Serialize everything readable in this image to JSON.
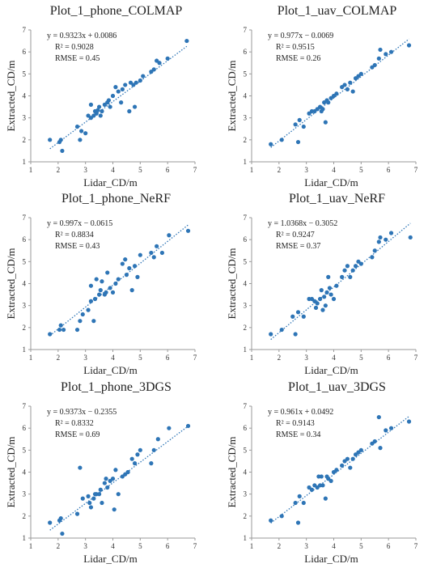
{
  "chart_data": [
    {
      "type": "scatter",
      "title": "Plot_1_phone_COLMAP",
      "xlabel": "Lidar_CD/m",
      "ylabel": "Extracted_CD/m",
      "xlim": [
        1,
        7
      ],
      "ylim": [
        1,
        7
      ],
      "xticks": [
        "1",
        "2",
        "3",
        "4",
        "5",
        "6",
        "7"
      ],
      "yticks": [
        "1",
        "2",
        "3",
        "4",
        "5",
        "6",
        "7"
      ],
      "grid": false,
      "trendline": {
        "slope": 0.9323,
        "intercept": 0.0086,
        "style": "dotted"
      },
      "annotations": [
        "y = 0.9323x + 0.0086",
        "R² = 0.9028",
        "RMSE = 0.45"
      ],
      "color": "#2e75b6",
      "points": [
        [
          1.7,
          2.0
        ],
        [
          2.05,
          1.9
        ],
        [
          2.1,
          2.0
        ],
        [
          2.15,
          1.5
        ],
        [
          2.7,
          2.6
        ],
        [
          2.8,
          2.0
        ],
        [
          2.85,
          2.4
        ],
        [
          3.0,
          2.3
        ],
        [
          3.1,
          3.1
        ],
        [
          3.2,
          3.0
        ],
        [
          3.2,
          3.6
        ],
        [
          3.3,
          3.1
        ],
        [
          3.35,
          3.3
        ],
        [
          3.4,
          3.2
        ],
        [
          3.45,
          3.35
        ],
        [
          3.5,
          3.5
        ],
        [
          3.55,
          3.1
        ],
        [
          3.6,
          3.3
        ],
        [
          3.7,
          3.6
        ],
        [
          3.8,
          3.7
        ],
        [
          3.85,
          3.8
        ],
        [
          3.9,
          3.5
        ],
        [
          4.0,
          4.0
        ],
        [
          4.1,
          4.4
        ],
        [
          4.2,
          4.2
        ],
        [
          4.3,
          3.7
        ],
        [
          4.35,
          4.3
        ],
        [
          4.45,
          4.5
        ],
        [
          4.6,
          3.3
        ],
        [
          4.65,
          4.6
        ],
        [
          4.75,
          4.5
        ],
        [
          4.8,
          3.5
        ],
        [
          4.85,
          4.6
        ],
        [
          5.0,
          4.7
        ],
        [
          5.1,
          4.9
        ],
        [
          5.4,
          5.1
        ],
        [
          5.5,
          5.2
        ],
        [
          5.6,
          5.6
        ],
        [
          5.7,
          5.5
        ],
        [
          6.0,
          5.7
        ],
        [
          6.7,
          6.5
        ]
      ]
    },
    {
      "type": "scatter",
      "title": "Plot_1_uav_COLMAP",
      "xlabel": "Lidar_CD/m",
      "ylabel": "Extracted_CD/m",
      "xlim": [
        1,
        7
      ],
      "ylim": [
        1,
        7
      ],
      "xticks": [
        "1",
        "2",
        "3",
        "4",
        "5",
        "6",
        "7"
      ],
      "yticks": [
        "1",
        "2",
        "3",
        "4",
        "5",
        "6",
        "7"
      ],
      "grid": false,
      "trendline": {
        "slope": 0.977,
        "intercept": -0.0069,
        "style": "dotted"
      },
      "annotations": [
        "y = 0.977x − 0.0069",
        "R² = 0.9515",
        "RMSE = 0.26"
      ],
      "color": "#2e75b6",
      "points": [
        [
          1.7,
          1.8
        ],
        [
          2.1,
          2.0
        ],
        [
          2.6,
          2.7
        ],
        [
          2.7,
          1.9
        ],
        [
          2.75,
          2.9
        ],
        [
          2.9,
          2.6
        ],
        [
          3.1,
          3.2
        ],
        [
          3.2,
          3.3
        ],
        [
          3.3,
          3.3
        ],
        [
          3.4,
          3.4
        ],
        [
          3.5,
          3.5
        ],
        [
          3.55,
          3.3
        ],
        [
          3.6,
          3.4
        ],
        [
          3.65,
          3.7
        ],
        [
          3.7,
          2.8
        ],
        [
          3.75,
          3.8
        ],
        [
          3.8,
          3.7
        ],
        [
          3.9,
          3.9
        ],
        [
          4.0,
          4.0
        ],
        [
          4.1,
          4.1
        ],
        [
          4.3,
          4.4
        ],
        [
          4.4,
          4.5
        ],
        [
          4.5,
          4.3
        ],
        [
          4.6,
          4.6
        ],
        [
          4.7,
          4.2
        ],
        [
          4.8,
          4.8
        ],
        [
          4.9,
          4.9
        ],
        [
          5.0,
          5.0
        ],
        [
          5.4,
          5.3
        ],
        [
          5.5,
          5.4
        ],
        [
          5.65,
          5.7
        ],
        [
          5.7,
          6.1
        ],
        [
          5.9,
          5.9
        ],
        [
          6.1,
          6.0
        ],
        [
          6.75,
          6.3
        ]
      ]
    },
    {
      "type": "scatter",
      "title": "Plot_1_phone_NeRF",
      "xlabel": "Lidar_CD/m",
      "ylabel": "Extracted_CD/m",
      "xlim": [
        1,
        7
      ],
      "ylim": [
        1,
        7
      ],
      "xticks": [
        "1",
        "2",
        "3",
        "4",
        "5",
        "6",
        "7"
      ],
      "yticks": [
        "1",
        "2",
        "3",
        "4",
        "5",
        "6",
        "7"
      ],
      "grid": false,
      "trendline": {
        "slope": 0.997,
        "intercept": -0.0615,
        "style": "dotted"
      },
      "annotations": [
        "y = 0.997x − 0.0615",
        "R² = 0.8834",
        "RMSE = 0.43"
      ],
      "color": "#2e75b6",
      "points": [
        [
          1.7,
          1.7
        ],
        [
          2.05,
          1.9
        ],
        [
          2.1,
          2.1
        ],
        [
          2.2,
          1.9
        ],
        [
          2.7,
          1.9
        ],
        [
          2.8,
          2.3
        ],
        [
          2.9,
          2.6
        ],
        [
          3.1,
          2.8
        ],
        [
          3.2,
          3.2
        ],
        [
          3.2,
          3.9
        ],
        [
          3.3,
          2.3
        ],
        [
          3.35,
          3.3
        ],
        [
          3.4,
          4.2
        ],
        [
          3.5,
          3.5
        ],
        [
          3.55,
          3.7
        ],
        [
          3.6,
          4.1
        ],
        [
          3.7,
          3.5
        ],
        [
          3.75,
          3.6
        ],
        [
          3.8,
          4.5
        ],
        [
          3.9,
          3.8
        ],
        [
          4.0,
          3.6
        ],
        [
          4.1,
          4.0
        ],
        [
          4.2,
          4.2
        ],
        [
          4.35,
          4.9
        ],
        [
          4.45,
          5.1
        ],
        [
          4.5,
          4.4
        ],
        [
          4.6,
          4.7
        ],
        [
          4.7,
          3.7
        ],
        [
          4.8,
          4.8
        ],
        [
          4.9,
          4.3
        ],
        [
          5.0,
          5.3
        ],
        [
          5.4,
          5.4
        ],
        [
          5.5,
          5.2
        ],
        [
          5.6,
          5.7
        ],
        [
          5.8,
          5.4
        ],
        [
          6.05,
          6.2
        ],
        [
          6.75,
          6.4
        ]
      ]
    },
    {
      "type": "scatter",
      "title": "Plot_1_uav_NeRF",
      "xlabel": "Lidar_CD/m",
      "ylabel": "Extracted_CD/m",
      "xlim": [
        1,
        7
      ],
      "ylim": [
        1,
        7
      ],
      "xticks": [
        "1",
        "2",
        "3",
        "4",
        "5",
        "6",
        "7"
      ],
      "yticks": [
        "1",
        "2",
        "3",
        "4",
        "5",
        "6",
        "7"
      ],
      "grid": false,
      "trendline": {
        "slope": 1.0368,
        "intercept": -0.3052,
        "style": "dotted"
      },
      "annotations": [
        "y = 1.0368x − 0.3052",
        "R² = 0.9247",
        "RMSE = 0.37"
      ],
      "color": "#2e75b6",
      "points": [
        [
          1.7,
          1.7
        ],
        [
          2.1,
          1.9
        ],
        [
          2.5,
          2.5
        ],
        [
          2.6,
          1.7
        ],
        [
          2.7,
          2.7
        ],
        [
          2.9,
          2.5
        ],
        [
          3.1,
          3.3
        ],
        [
          3.2,
          3.3
        ],
        [
          3.3,
          3.2
        ],
        [
          3.35,
          2.9
        ],
        [
          3.4,
          3.1
        ],
        [
          3.5,
          3.3
        ],
        [
          3.55,
          3.7
        ],
        [
          3.6,
          2.8
        ],
        [
          3.65,
          3.4
        ],
        [
          3.7,
          3.0
        ],
        [
          3.75,
          3.6
        ],
        [
          3.8,
          4.3
        ],
        [
          3.85,
          3.8
        ],
        [
          3.9,
          3.5
        ],
        [
          4.0,
          3.3
        ],
        [
          4.1,
          3.9
        ],
        [
          4.3,
          4.3
        ],
        [
          4.4,
          4.6
        ],
        [
          4.5,
          4.8
        ],
        [
          4.6,
          4.3
        ],
        [
          4.7,
          4.6
        ],
        [
          4.8,
          4.8
        ],
        [
          4.9,
          5.0
        ],
        [
          5.0,
          4.9
        ],
        [
          5.4,
          5.2
        ],
        [
          5.5,
          5.5
        ],
        [
          5.65,
          5.9
        ],
        [
          5.7,
          6.1
        ],
        [
          5.9,
          6.0
        ],
        [
          6.1,
          6.3
        ],
        [
          6.8,
          6.1
        ]
      ]
    },
    {
      "type": "scatter",
      "title": "Plot_1_phone_3DGS",
      "xlabel": "Lidar_CD/m",
      "ylabel": "Extracted_CD/m",
      "xlim": [
        1,
        7
      ],
      "ylim": [
        1,
        7
      ],
      "xticks": [
        "1",
        "2",
        "3",
        "4",
        "5",
        "6",
        "7"
      ],
      "yticks": [
        "1",
        "2",
        "3",
        "4",
        "5",
        "6",
        "7"
      ],
      "grid": false,
      "trendline": {
        "slope": 0.9373,
        "intercept": -0.2355,
        "style": "dotted"
      },
      "annotations": [
        "y = 0.9373x − 0.2355",
        "R² = 0.8332",
        "RMSE = 0.69"
      ],
      "color": "#2e75b6",
      "points": [
        [
          1.7,
          1.7
        ],
        [
          2.05,
          1.8
        ],
        [
          2.1,
          1.9
        ],
        [
          2.15,
          1.2
        ],
        [
          2.7,
          2.1
        ],
        [
          2.8,
          4.2
        ],
        [
          2.9,
          2.8
        ],
        [
          3.1,
          2.9
        ],
        [
          3.15,
          2.6
        ],
        [
          3.2,
          2.4
        ],
        [
          3.3,
          2.8
        ],
        [
          3.35,
          3.0
        ],
        [
          3.4,
          3.0
        ],
        [
          3.5,
          3.0
        ],
        [
          3.55,
          3.2
        ],
        [
          3.6,
          2.6
        ],
        [
          3.7,
          3.5
        ],
        [
          3.75,
          3.7
        ],
        [
          3.8,
          3.3
        ],
        [
          3.9,
          3.6
        ],
        [
          4.0,
          3.7
        ],
        [
          4.05,
          2.3
        ],
        [
          4.1,
          4.1
        ],
        [
          4.2,
          3.0
        ],
        [
          4.35,
          3.8
        ],
        [
          4.45,
          3.9
        ],
        [
          4.55,
          4.0
        ],
        [
          4.7,
          4.6
        ],
        [
          4.8,
          4.4
        ],
        [
          4.9,
          4.8
        ],
        [
          5.0,
          5.0
        ],
        [
          5.4,
          4.4
        ],
        [
          5.5,
          5.0
        ],
        [
          5.65,
          5.5
        ],
        [
          6.05,
          6.0
        ],
        [
          6.75,
          6.1
        ]
      ]
    },
    {
      "type": "scatter",
      "title": "Plot_1_uav_3DGS",
      "xlabel": "Lidar_CD/m",
      "ylabel": "Extracted_CD/m",
      "xlim": [
        1,
        7
      ],
      "ylim": [
        1,
        7
      ],
      "xticks": [
        "1",
        "2",
        "3",
        "4",
        "5",
        "6",
        "7"
      ],
      "yticks": [
        "1",
        "2",
        "3",
        "4",
        "5",
        "6",
        "7"
      ],
      "grid": false,
      "trendline": {
        "slope": 0.961,
        "intercept": 0.0492,
        "style": "dotted"
      },
      "annotations": [
        "y = 0.961x + 0.0492",
        "R² = 0.9143",
        "RMSE = 0.34"
      ],
      "color": "#2e75b6",
      "points": [
        [
          1.7,
          1.8
        ],
        [
          2.1,
          2.0
        ],
        [
          2.6,
          2.6
        ],
        [
          2.7,
          1.7
        ],
        [
          2.75,
          2.9
        ],
        [
          2.9,
          2.6
        ],
        [
          3.1,
          3.3
        ],
        [
          3.2,
          3.2
        ],
        [
          3.3,
          3.4
        ],
        [
          3.4,
          3.3
        ],
        [
          3.45,
          3.8
        ],
        [
          3.5,
          3.4
        ],
        [
          3.55,
          3.8
        ],
        [
          3.6,
          3.4
        ],
        [
          3.7,
          2.8
        ],
        [
          3.75,
          3.8
        ],
        [
          3.8,
          3.7
        ],
        [
          3.9,
          3.6
        ],
        [
          4.0,
          4.0
        ],
        [
          4.1,
          4.1
        ],
        [
          4.3,
          4.3
        ],
        [
          4.4,
          4.5
        ],
        [
          4.5,
          4.6
        ],
        [
          4.6,
          4.2
        ],
        [
          4.7,
          4.6
        ],
        [
          4.8,
          4.8
        ],
        [
          4.9,
          4.9
        ],
        [
          5.0,
          5.0
        ],
        [
          5.4,
          5.3
        ],
        [
          5.5,
          5.4
        ],
        [
          5.65,
          6.5
        ],
        [
          5.7,
          5.1
        ],
        [
          5.9,
          5.9
        ],
        [
          6.1,
          6.0
        ],
        [
          6.75,
          6.3
        ]
      ]
    }
  ]
}
